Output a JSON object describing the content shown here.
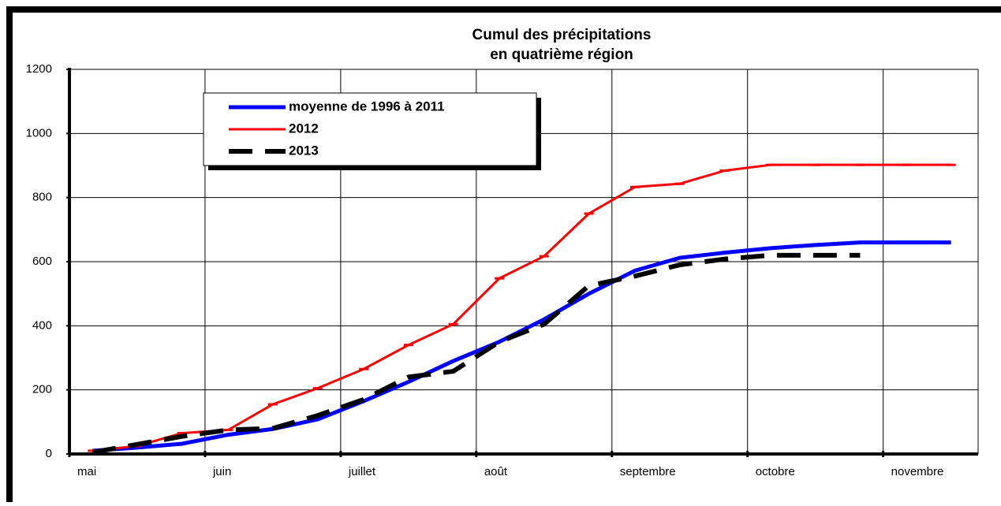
{
  "chart_data": {
    "type": "line",
    "title": [
      "Cumul des précipitations",
      "en quatrième région"
    ],
    "x": [
      0.17,
      0.5,
      0.83,
      1.17,
      1.5,
      1.83,
      2.17,
      2.5,
      2.83,
      3.17,
      3.5,
      3.83,
      4.17,
      4.5,
      4.83,
      5.17,
      5.5,
      5.83,
      6.17,
      6.5
    ],
    "series": [
      {
        "name": "moyenne de 1996 à 2011",
        "color": "#0000ff",
        "values": [
          10,
          20,
          32,
          60,
          78,
          108,
          165,
          225,
          290,
          350,
          420,
          500,
          572,
          612,
          628,
          642,
          652,
          660,
          660,
          660
        ]
      },
      {
        "name": "2012",
        "color": "#ff0000",
        "values": [
          10,
          25,
          65,
          75,
          155,
          205,
          265,
          340,
          405,
          548,
          617,
          750,
          833,
          843,
          884,
          902,
          902,
          902,
          902,
          902
        ]
      },
      {
        "name": "2013",
        "color": "#000000",
        "dashed": true,
        "values": [
          5,
          30,
          55,
          75,
          80,
          120,
          170,
          240,
          258,
          350,
          405,
          525,
          555,
          590,
          608,
          620,
          620,
          620,
          null,
          null
        ]
      }
    ],
    "xlim": [
      0,
      6.7
    ],
    "xticks": [
      {
        "value": 0,
        "label": "mai"
      },
      {
        "value": 1,
        "label": "juin"
      },
      {
        "value": 2,
        "label": "juillet"
      },
      {
        "value": 3,
        "label": "août"
      },
      {
        "value": 4,
        "label": "septembre"
      },
      {
        "value": 5,
        "label": "octobre"
      },
      {
        "value": 6,
        "label": "novembre"
      }
    ],
    "ylim": [
      0,
      1200
    ],
    "yticks": [
      0,
      200,
      400,
      600,
      800,
      1000,
      1200
    ],
    "grid": true
  }
}
